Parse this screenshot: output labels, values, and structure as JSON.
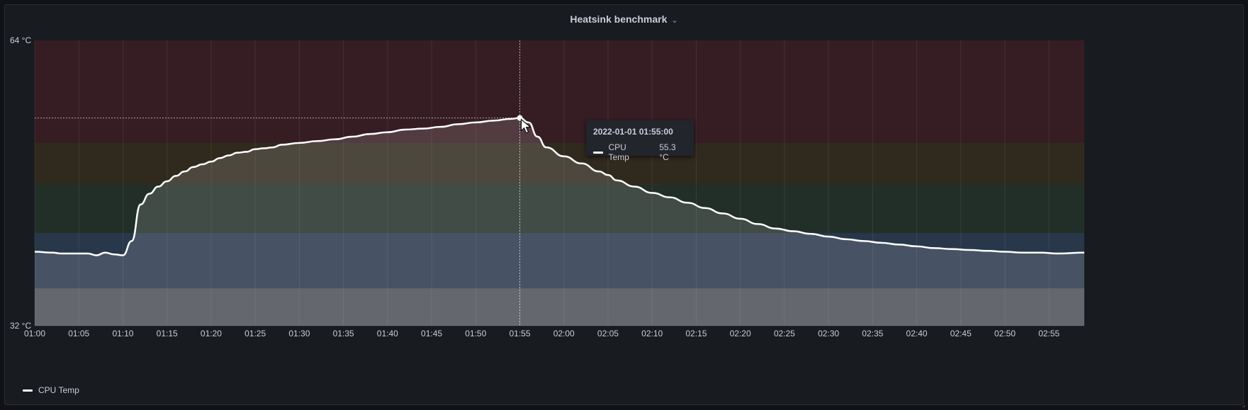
{
  "panel": {
    "title": "Heatsink benchmark"
  },
  "tooltip": {
    "time": "2022-01-01 01:55:00",
    "series": "CPU Temp",
    "value": "55.3 °C"
  },
  "legend": {
    "series": "CPU Temp"
  },
  "chart_data": {
    "type": "line",
    "title": "Heatsink benchmark",
    "ylim": [
      32,
      64
    ],
    "y_unit": "°C",
    "y_tick_labels": [
      "64 °C",
      "32 °C"
    ],
    "x_tick_labels": [
      "01:00",
      "01:05",
      "01:10",
      "01:15",
      "01:20",
      "01:25",
      "01:30",
      "01:35",
      "01:40",
      "01:45",
      "01:50",
      "01:55",
      "02:00",
      "02:05",
      "02:10",
      "02:15",
      "02:20",
      "02:25",
      "02:30",
      "02:35",
      "02:40",
      "02:45",
      "02:50",
      "02:55"
    ],
    "x_range": [
      "01:00",
      "02:59"
    ],
    "grid": true,
    "legend_placement": "bottom-left",
    "line_color": "#ffffff",
    "threshold_bands": [
      {
        "from": 32,
        "to": 36.2,
        "color": "#8a8e98"
      },
      {
        "from": 36.2,
        "to": 42.4,
        "color": "#3d5a80"
      },
      {
        "from": 42.4,
        "to": 47.8,
        "color": "#2e4a34"
      },
      {
        "from": 47.8,
        "to": 52.5,
        "color": "#4d3f1c"
      },
      {
        "from": 52.5,
        "to": 64,
        "color": "#5a2228"
      }
    ],
    "crosshair": {
      "x": "01:55",
      "y": 55.3
    },
    "series": [
      {
        "name": "CPU Temp",
        "x": [
          "01:00",
          "01:02",
          "01:03",
          "01:04",
          "01:05",
          "01:06",
          "01:07",
          "01:08",
          "01:09",
          "01:10",
          "01:11",
          "01:12",
          "01:13",
          "01:14",
          "01:15",
          "01:16",
          "01:17",
          "01:18",
          "01:19",
          "01:20",
          "01:21",
          "01:22",
          "01:23",
          "01:24",
          "01:25",
          "01:26",
          "01:27",
          "01:28",
          "01:30",
          "01:32",
          "01:34",
          "01:36",
          "01:38",
          "01:40",
          "01:42",
          "01:44",
          "01:46",
          "01:48",
          "01:50",
          "01:52",
          "01:54",
          "01:55",
          "01:56",
          "01:57",
          "01:58",
          "02:00",
          "02:02",
          "02:04",
          "02:05",
          "02:06",
          "02:08",
          "02:10",
          "02:12",
          "02:14",
          "02:16",
          "02:18",
          "02:20",
          "02:22",
          "02:24",
          "02:26",
          "02:28",
          "02:30",
          "02:32",
          "02:34",
          "02:36",
          "02:38",
          "02:40",
          "02:42",
          "02:44",
          "02:46",
          "02:48",
          "02:50",
          "02:52",
          "02:54",
          "02:56",
          "02:59"
        ],
        "values": [
          40.3,
          40.2,
          40.1,
          40.1,
          40.1,
          40.1,
          39.9,
          40.2,
          40.0,
          39.9,
          41.5,
          45.6,
          46.8,
          47.6,
          48.2,
          48.8,
          49.3,
          49.8,
          50.1,
          50.4,
          50.8,
          51.1,
          51.4,
          51.5,
          51.8,
          51.9,
          52.0,
          52.3,
          52.5,
          52.7,
          52.9,
          53.2,
          53.5,
          53.7,
          54.0,
          54.1,
          54.3,
          54.6,
          54.8,
          55.0,
          55.2,
          55.3,
          54.8,
          53.2,
          52.0,
          51.0,
          50.2,
          49.3,
          48.9,
          48.3,
          47.6,
          46.9,
          46.4,
          45.8,
          45.2,
          44.6,
          44.0,
          43.4,
          42.9,
          42.6,
          42.3,
          42.0,
          41.7,
          41.5,
          41.3,
          41.1,
          40.9,
          40.7,
          40.6,
          40.5,
          40.4,
          40.3,
          40.2,
          40.2,
          40.1,
          40.2
        ]
      }
    ]
  }
}
